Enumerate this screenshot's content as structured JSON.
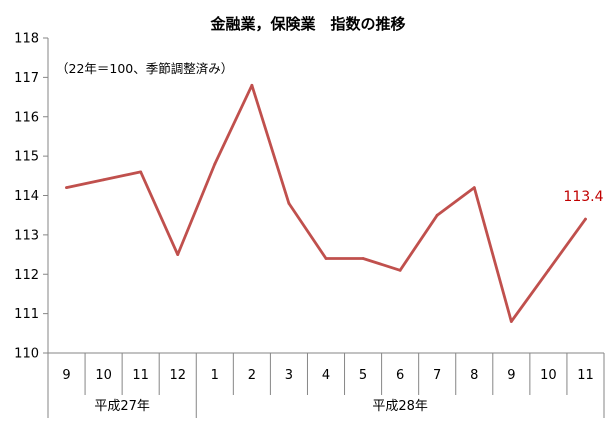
{
  "chart_data": {
    "type": "line",
    "title": "金融業，保険業　指数の推移",
    "note": "（22年＝100、季節調整済み）",
    "categories": [
      "9",
      "10",
      "11",
      "12",
      "1",
      "2",
      "3",
      "4",
      "5",
      "6",
      "7",
      "8",
      "9",
      "10",
      "11"
    ],
    "year_groups": [
      {
        "label": "平成27年",
        "start": 0,
        "end": 3
      },
      {
        "label": "平成28年",
        "start": 4,
        "end": 14
      }
    ],
    "series": [
      {
        "values": [
          114.2,
          114.4,
          114.6,
          112.5,
          114.8,
          116.8,
          113.8,
          112.4,
          112.4,
          112.1,
          113.5,
          114.2,
          110.8,
          112.1,
          113.4
        ],
        "color": "#c0504d"
      }
    ],
    "ylim": [
      110,
      118
    ],
    "yticks": [
      110,
      111,
      112,
      113,
      114,
      115,
      116,
      117,
      118
    ],
    "data_label": {
      "index": 14,
      "text": "113.4",
      "color": "#c00000"
    },
    "grid": false,
    "xlabel": "",
    "ylabel": ""
  }
}
